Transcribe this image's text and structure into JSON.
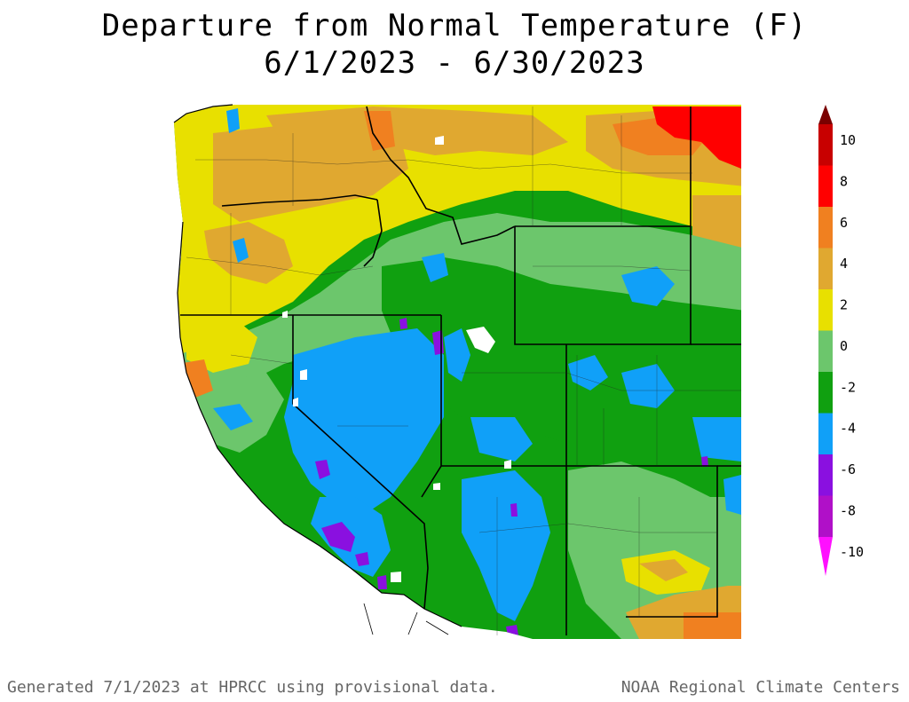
{
  "title": {
    "line1": "Departure from Normal Temperature (F)",
    "line2": "6/1/2023 - 6/30/2023"
  },
  "legend": {
    "tick_labels": [
      "10",
      "8",
      "6",
      "4",
      "2",
      "0",
      "-2",
      "-4",
      "-6",
      "-8",
      "-10"
    ],
    "colors": [
      "#7a0000",
      "#c80000",
      "#ff0000",
      "#f08020",
      "#e0a830",
      "#e8e000",
      "#6cc66c",
      "#10a010",
      "#10a0f8",
      "#8a10e0",
      "#b010c8",
      "#ff10ff"
    ]
  },
  "footer": {
    "left": "Generated 7/1/2023 at HPRCC using provisional data.",
    "right": "NOAA Regional Climate Centers"
  }
}
